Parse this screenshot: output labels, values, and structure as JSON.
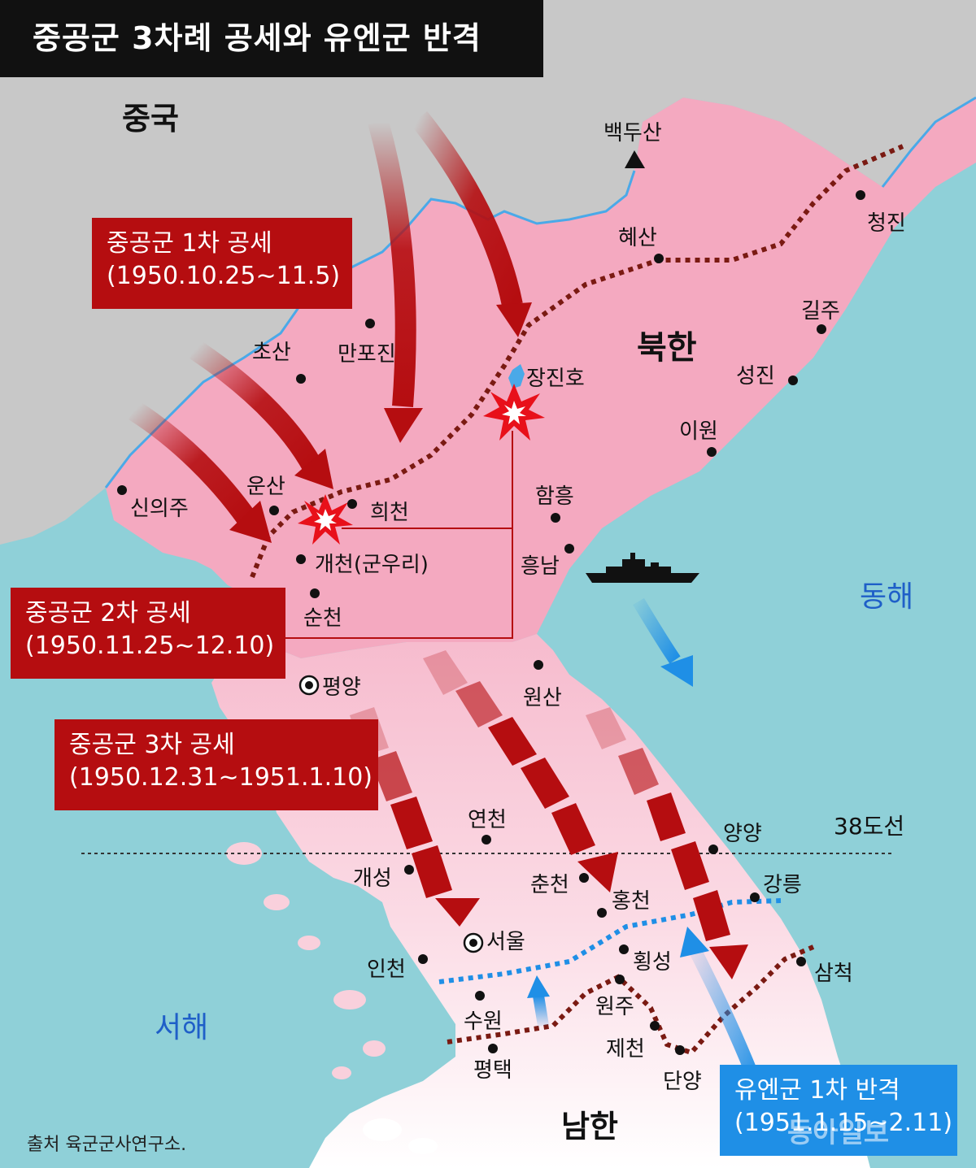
{
  "title": "중공군 3차례 공세와 유엔군 반격",
  "regions": {
    "china": "중국",
    "north_korea": "북한",
    "south_korea": "남한",
    "east_sea": "동해",
    "west_sea": "서해"
  },
  "parallel_label": "38도선",
  "offensives": [
    {
      "name": "중공군 1차 공세",
      "period": "(1950.10.25∼11.5)"
    },
    {
      "name": "중공군 2차 공세",
      "period": "(1950.11.25∼12.10)"
    },
    {
      "name": "중공군 3차 공세",
      "period": "(1950.12.31∼1951.1.10)"
    }
  ],
  "counter": {
    "name": "유엔군 1차 반격",
    "period": "(1951.1.15∼2.11)"
  },
  "places": {
    "baekdusan": "백두산",
    "hyesan": "혜산",
    "cheongjin": "청진",
    "gilju": "길주",
    "seongjin": "성진",
    "iwon": "이원",
    "jangjinho": "장진호",
    "hamheung": "함흥",
    "heungnam": "흥남",
    "wonsan": "원산",
    "chosan": "초산",
    "manpojin": "만포진",
    "sinuiju": "신의주",
    "unsan": "운산",
    "huicheon": "희천",
    "gaecheon": "개천(군우리)",
    "suncheon": "순천",
    "pyongyang": "평양",
    "yeoncheon": "연천",
    "yangyang": "양양",
    "gaeseong": "개성",
    "chuncheon": "춘천",
    "hongcheon": "홍천",
    "gangneung": "강릉",
    "seoul": "서울",
    "hoengseong": "횡성",
    "incheon": "인천",
    "samcheok": "삼척",
    "wonju": "원주",
    "suwon": "수원",
    "jecheon": "제천",
    "pyeongtaek": "평택",
    "danyang": "단양"
  },
  "source": "출처 육군군사연구소.",
  "watermark": "동아일보",
  "colors": {
    "china_land": "#c8c8c8",
    "north_land": "#f4a9c0",
    "south_land_upper": "#f9d0dc",
    "south_land_lower": "#ffffff",
    "sea": "#8fd0d8",
    "offensive_red": "#b50d10",
    "counter_blue": "#1f8fe6",
    "front_line": "#7a1a12"
  }
}
